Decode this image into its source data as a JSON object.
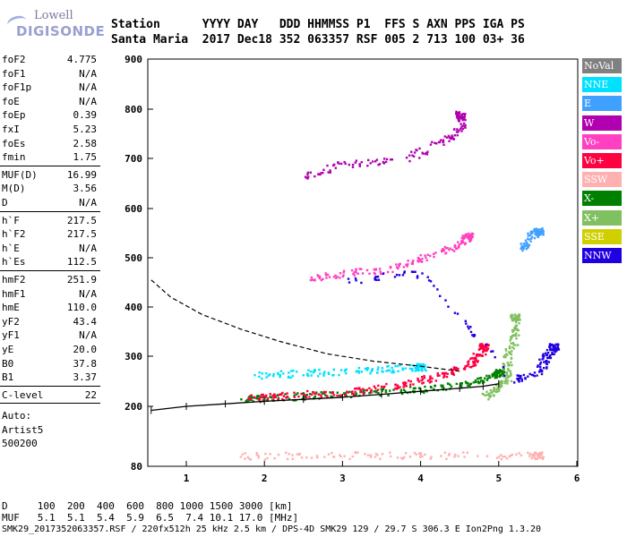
{
  "header": {
    "labels": "Station      YYYY DAY   DDD HHMMSS P1  FFS S AXN PPS IGA PS",
    "values": "Santa Maria  2017 Dec18 352 063357 RSF 005 2 713 100 03+ 36"
  },
  "logo": {
    "line1": "Lowell",
    "line2": "DIGISONDE"
  },
  "params_group1": [
    {
      "key": "foF2",
      "value": "4.775"
    },
    {
      "key": "foF1",
      "value": "N/A"
    },
    {
      "key": "foF1p",
      "value": "N/A"
    },
    {
      "key": "foE",
      "value": "N/A"
    },
    {
      "key": "foEp",
      "value": "0.39"
    },
    {
      "key": "fxI",
      "value": "5.23"
    },
    {
      "key": "foEs",
      "value": "2.58"
    },
    {
      "key": "fmin",
      "value": "1.75"
    }
  ],
  "params_group2": [
    {
      "key": "MUF(D)",
      "value": "16.99"
    },
    {
      "key": "M(D)",
      "value": "3.56"
    },
    {
      "key": "D",
      "value": "N/A"
    }
  ],
  "params_group3": [
    {
      "key": "h`F",
      "value": "217.5"
    },
    {
      "key": "h`F2",
      "value": "217.5"
    },
    {
      "key": "h`E",
      "value": "N/A"
    },
    {
      "key": "h`Es",
      "value": "112.5"
    }
  ],
  "params_group4": [
    {
      "key": "hmF2",
      "value": "251.9"
    },
    {
      "key": "hmF1",
      "value": "N/A"
    },
    {
      "key": "hmE",
      "value": "110.0"
    },
    {
      "key": "yF2",
      "value": "43.4"
    },
    {
      "key": "yF1",
      "value": "N/A"
    },
    {
      "key": "yE",
      "value": "20.0"
    },
    {
      "key": "B0",
      "value": "37.8"
    },
    {
      "key": "B1",
      "value": "3.37"
    }
  ],
  "params_group5": [
    {
      "key": "C-level",
      "value": "22"
    }
  ],
  "auto_lines": [
    "Auto:",
    "Artist5",
    "500200"
  ],
  "legend": [
    {
      "label": "NoVal",
      "color": "#808080"
    },
    {
      "label": "NNE",
      "color": "#00e0ff"
    },
    {
      "label": "E",
      "color": "#40a0ff"
    },
    {
      "label": "W",
      "color": "#b000b0"
    },
    {
      "label": "Vo-",
      "color": "#ff40c0"
    },
    {
      "label": "Vo+",
      "color": "#ff0040"
    },
    {
      "label": "SSW",
      "color": "#ffb0b0"
    },
    {
      "label": "X-",
      "color": "#008000"
    },
    {
      "label": "X+",
      "color": "#80c060"
    },
    {
      "label": "SSE",
      "color": "#d0d000"
    },
    {
      "label": "NNW",
      "color": "#2000e0"
    }
  ],
  "footer": {
    "d_line": "D     100  200  400  600  800 1000 1500 3000 [km]",
    "muf_line": "MUF   5.1  5.1  5.4  5.9  6.5  7.4 10.1 17.0 [MHz]",
    "file_line": "SMK29_2017352063357.RSF / 220fx512h 25 kHz 2.5 km / DPS-4D SMK29 129 / 29.7 S 306.3 E Ion2Png 1.3.20"
  },
  "chart_data": {
    "type": "scatter",
    "title": "",
    "xlabel": "",
    "ylabel": "",
    "xlim": [
      0.55,
      6.0
    ],
    "ylim": [
      80,
      900
    ],
    "y_scale": "nonlinear (ionogram virtual height)",
    "x_ticks": [
      1,
      2,
      3,
      4,
      5,
      6
    ],
    "y_ticks": [
      80,
      200,
      300,
      400,
      500,
      600,
      700,
      800,
      900
    ],
    "grid": false,
    "series": [
      {
        "name": "X-",
        "points": [
          [
            1.7,
            215
          ],
          [
            2.0,
            218
          ],
          [
            2.5,
            222
          ],
          [
            3.0,
            226
          ],
          [
            3.5,
            230
          ],
          [
            4.0,
            236
          ],
          [
            4.5,
            245
          ],
          [
            4.8,
            256
          ],
          [
            5.0,
            270
          ]
        ]
      },
      {
        "name": "Vo+",
        "points": [
          [
            1.8,
            218
          ],
          [
            2.2,
            223
          ],
          [
            2.8,
            228
          ],
          [
            3.3,
            234
          ],
          [
            3.8,
            246
          ],
          [
            4.2,
            262
          ],
          [
            4.5,
            275
          ],
          [
            4.7,
            295
          ],
          [
            4.8,
            320
          ]
        ]
      },
      {
        "name": "Vo-",
        "points": [
          [
            2.6,
            460
          ],
          [
            3.0,
            470
          ],
          [
            3.6,
            478
          ],
          [
            4.0,
            500
          ],
          [
            4.4,
            520
          ],
          [
            4.6,
            545
          ]
        ]
      },
      {
        "name": "X+",
        "points": [
          [
            4.8,
            220
          ],
          [
            5.0,
            240
          ],
          [
            5.1,
            260
          ],
          [
            5.1,
            300
          ],
          [
            5.2,
            340
          ],
          [
            5.2,
            380
          ]
        ]
      },
      {
        "name": "NNW",
        "points": [
          [
            3.0,
            455
          ],
          [
            4.0,
            470
          ],
          [
            5.2,
            255
          ],
          [
            5.5,
            270
          ],
          [
            5.6,
            300
          ],
          [
            5.7,
            320
          ]
        ]
      },
      {
        "name": "NNE",
        "points": [
          [
            1.9,
            262
          ],
          [
            2.5,
            268
          ],
          [
            3.0,
            270
          ],
          [
            3.6,
            276
          ],
          [
            4.0,
            280
          ]
        ]
      },
      {
        "name": "SSW",
        "points": [
          [
            1.7,
            102
          ],
          [
            2.5,
            103
          ],
          [
            3.5,
            104
          ],
          [
            4.5,
            103
          ],
          [
            5.5,
            103
          ]
        ]
      },
      {
        "name": "W",
        "points": [
          [
            2.5,
            665
          ],
          [
            3.0,
            690
          ],
          [
            3.8,
            700
          ],
          [
            4.3,
            740
          ],
          [
            4.5,
            760
          ],
          [
            4.5,
            790
          ]
        ]
      },
      {
        "name": "E",
        "points": [
          [
            5.3,
            520
          ],
          [
            5.4,
            545
          ],
          [
            5.5,
            555
          ]
        ]
      }
    ],
    "profile_curve": [
      [
        0.55,
        455
      ],
      [
        0.8,
        420
      ],
      [
        1.2,
        385
      ],
      [
        1.7,
        355
      ],
      [
        2.2,
        330
      ],
      [
        2.8,
        305
      ],
      [
        3.4,
        290
      ],
      [
        4.0,
        280
      ],
      [
        4.5,
        270
      ]
    ],
    "trace_f2": [
      [
        0.55,
        192
      ],
      [
        1.0,
        200
      ],
      [
        1.5,
        205
      ],
      [
        2.0,
        210
      ],
      [
        2.5,
        214
      ],
      [
        3.0,
        218
      ],
      [
        3.5,
        224
      ],
      [
        4.0,
        230
      ],
      [
        4.5,
        236
      ],
      [
        4.8,
        240
      ],
      [
        5.0,
        245
      ]
    ]
  }
}
